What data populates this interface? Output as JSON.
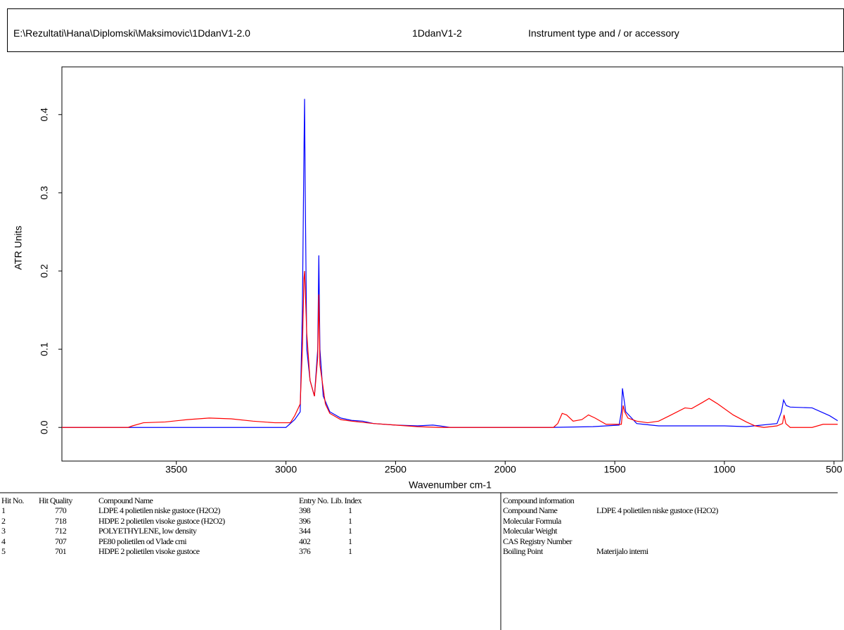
{
  "header": {
    "file": "E:\\Rezultati\\Hana\\Diplomski\\Maksimovic\\1DdanV1-2.0",
    "sample": "1DdanV1-2",
    "instrument": "Instrument type and / or accessory"
  },
  "chart_data": {
    "type": "line",
    "y_label": "ATR Units",
    "x_label": "Wavenumber cm-1",
    "xlim": [
      4022,
      432
    ],
    "ylim": [
      -0.043,
      0.461
    ],
    "xticks": [
      3500,
      3000,
      2500,
      2000,
      1500,
      1000,
      500
    ],
    "yticks": [
      {
        "value": 0,
        "label": "0.0"
      },
      0.1,
      0.2,
      0.3,
      0.4
    ],
    "series": [
      {
        "color": "#0000ff",
        "x": [
          4022,
          3000,
          2960,
          2935,
          2925,
          2918,
          2915,
          2912,
          2905,
          2890,
          2870,
          2855,
          2850,
          2845,
          2830,
          2800,
          2750,
          2700,
          2650,
          2600,
          2500,
          2400,
          2330,
          2300,
          2250,
          1800,
          1600,
          1480,
          1470,
          1465,
          1460,
          1450,
          1400,
          1370,
          1300,
          1000,
          900,
          760,
          740,
          730,
          718,
          700,
          600,
          520,
          480,
          450,
          432
        ],
        "values": [
          0,
          0,
          0.01,
          0.02,
          0.15,
          0.35,
          0.42,
          0.3,
          0.1,
          0.06,
          0.04,
          0.1,
          0.22,
          0.1,
          0.04,
          0.02,
          0.012,
          0.009,
          0.008,
          0.005,
          0.003,
          0.002,
          0.003,
          0.002,
          0,
          0,
          0.001,
          0.003,
          0.02,
          0.05,
          0.04,
          0.02,
          0.005,
          0.004,
          0.002,
          0.002,
          0.001,
          0.005,
          0.02,
          0.035,
          0.028,
          0.026,
          0.025,
          0.015,
          0.008,
          0.012,
          0.01
        ]
      },
      {
        "color": "#ff0000",
        "x": [
          4022,
          3720,
          3700,
          3650,
          3550,
          3450,
          3350,
          3250,
          3150,
          3050,
          2980,
          2960,
          2935,
          2925,
          2918,
          2915,
          2905,
          2890,
          2870,
          2855,
          2850,
          2845,
          2820,
          2800,
          2750,
          2700,
          2600,
          2500,
          2400,
          2300,
          1780,
          1760,
          1740,
          1720,
          1690,
          1650,
          1620,
          1590,
          1540,
          1470,
          1462,
          1455,
          1440,
          1400,
          1350,
          1300,
          1250,
          1180,
          1150,
          1100,
          1070,
          1030,
          960,
          900,
          860,
          820,
          760,
          735,
          728,
          720,
          700,
          600,
          550,
          480,
          440,
          432
        ],
        "values": [
          0,
          0,
          0.002,
          0.006,
          0.007,
          0.01,
          0.012,
          0.011,
          0.008,
          0.006,
          0.006,
          0.015,
          0.03,
          0.1,
          0.19,
          0.2,
          0.12,
          0.06,
          0.04,
          0.09,
          0.17,
          0.08,
          0.03,
          0.018,
          0.01,
          0.008,
          0.005,
          0.003,
          0.001,
          0,
          0,
          0.005,
          0.018,
          0.016,
          0.008,
          0.01,
          0.016,
          0.012,
          0.004,
          0.004,
          0.028,
          0.02,
          0.012,
          0.008,
          0.006,
          0.008,
          0.015,
          0.025,
          0.024,
          0.032,
          0.037,
          0.03,
          0.016,
          0.007,
          0.002,
          0,
          0.002,
          0.005,
          0.016,
          0.005,
          0,
          0,
          0.004,
          0.004,
          0.002,
          0.003
        ]
      }
    ]
  },
  "hits": {
    "columns": [
      "Hit No.",
      "Hit Quality",
      "Compound Name",
      "Entry No.",
      "Lib. Index"
    ],
    "rows": [
      [
        1,
        770,
        "LDPE 4 polietilen niske gustoce (H2O2)",
        398,
        1
      ],
      [
        2,
        718,
        "HDPE 2 polietilen visoke gustoce (H2O2)",
        396,
        1
      ],
      [
        3,
        712,
        "POLYETHYLENE, low density",
        344,
        1
      ],
      [
        4,
        707,
        "PE80 polietilen od Vlade crni",
        402,
        1
      ],
      [
        5,
        701,
        "HDPE 2 polietilen visoke gustoce",
        376,
        1
      ]
    ]
  },
  "compound_info": {
    "title": "Compound information",
    "rows": [
      [
        "Compound Name",
        "LDPE 4 polietilen niske gustoce (H2O2)"
      ],
      [
        "Molecular Formula"
      ],
      [
        "Molecular Weight"
      ],
      [
        "CAS Registry Number"
      ],
      [
        "Boiling Point",
        "Materijalo interni"
      ]
    ]
  }
}
